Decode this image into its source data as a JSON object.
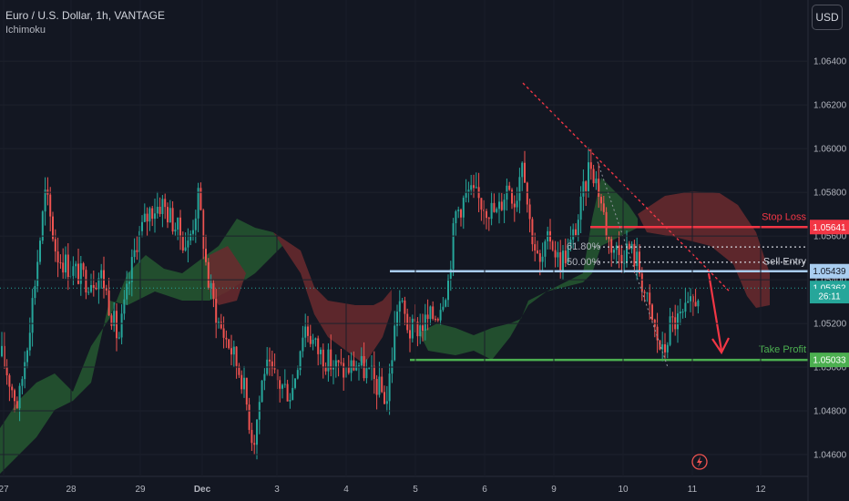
{
  "legend": {
    "symbol": "Euro / U.S. Dollar, 1h, VANTAGE",
    "indicator": "Ichimoku"
  },
  "currency_button": "USD",
  "colors": {
    "bg": "#131722",
    "up": "#26a69a",
    "down": "#ef5350",
    "stop": "#f23645",
    "entry": "#a9cdf0",
    "tp": "#4caf50",
    "cloud_bull": "#275c32",
    "cloud_bear": "#6b2a2e"
  },
  "chart_data": {
    "type": "candlestick",
    "ylim": [
      1.045,
      1.0668
    ],
    "y_ticks": [
      "1.06400",
      "1.06200",
      "1.06000",
      "1.05800",
      "1.05600",
      "1.05400",
      "1.05200",
      "1.05000",
      "1.04800",
      "1.04600"
    ],
    "x_ticks": [
      "27",
      "28",
      "29",
      "Dec",
      "3",
      "4",
      "5",
      "6",
      "9",
      "10",
      "11",
      "12"
    ],
    "price_tags": [
      {
        "label": "1.05641",
        "value": 1.05641,
        "color": "#f23645"
      },
      {
        "label": "1.05439",
        "value": 1.05439,
        "color": "#a9cdf0"
      },
      {
        "label": "1.05362",
        "value": 1.05362,
        "color": "#26a69a"
      },
      {
        "label": "26:11",
        "value": 1.05325,
        "color": "#26a69a"
      },
      {
        "label": "1.05033",
        "value": 1.05033,
        "color": "#4caf50"
      }
    ],
    "levels": [
      {
        "name": "Stop Loss",
        "value": 1.05641
      },
      {
        "name": "Sell Entry",
        "value": 1.05439
      },
      {
        "name": "Take Profit",
        "value": 1.05033
      }
    ],
    "fib_labels": [
      "61.80%",
      "50.00%"
    ]
  }
}
